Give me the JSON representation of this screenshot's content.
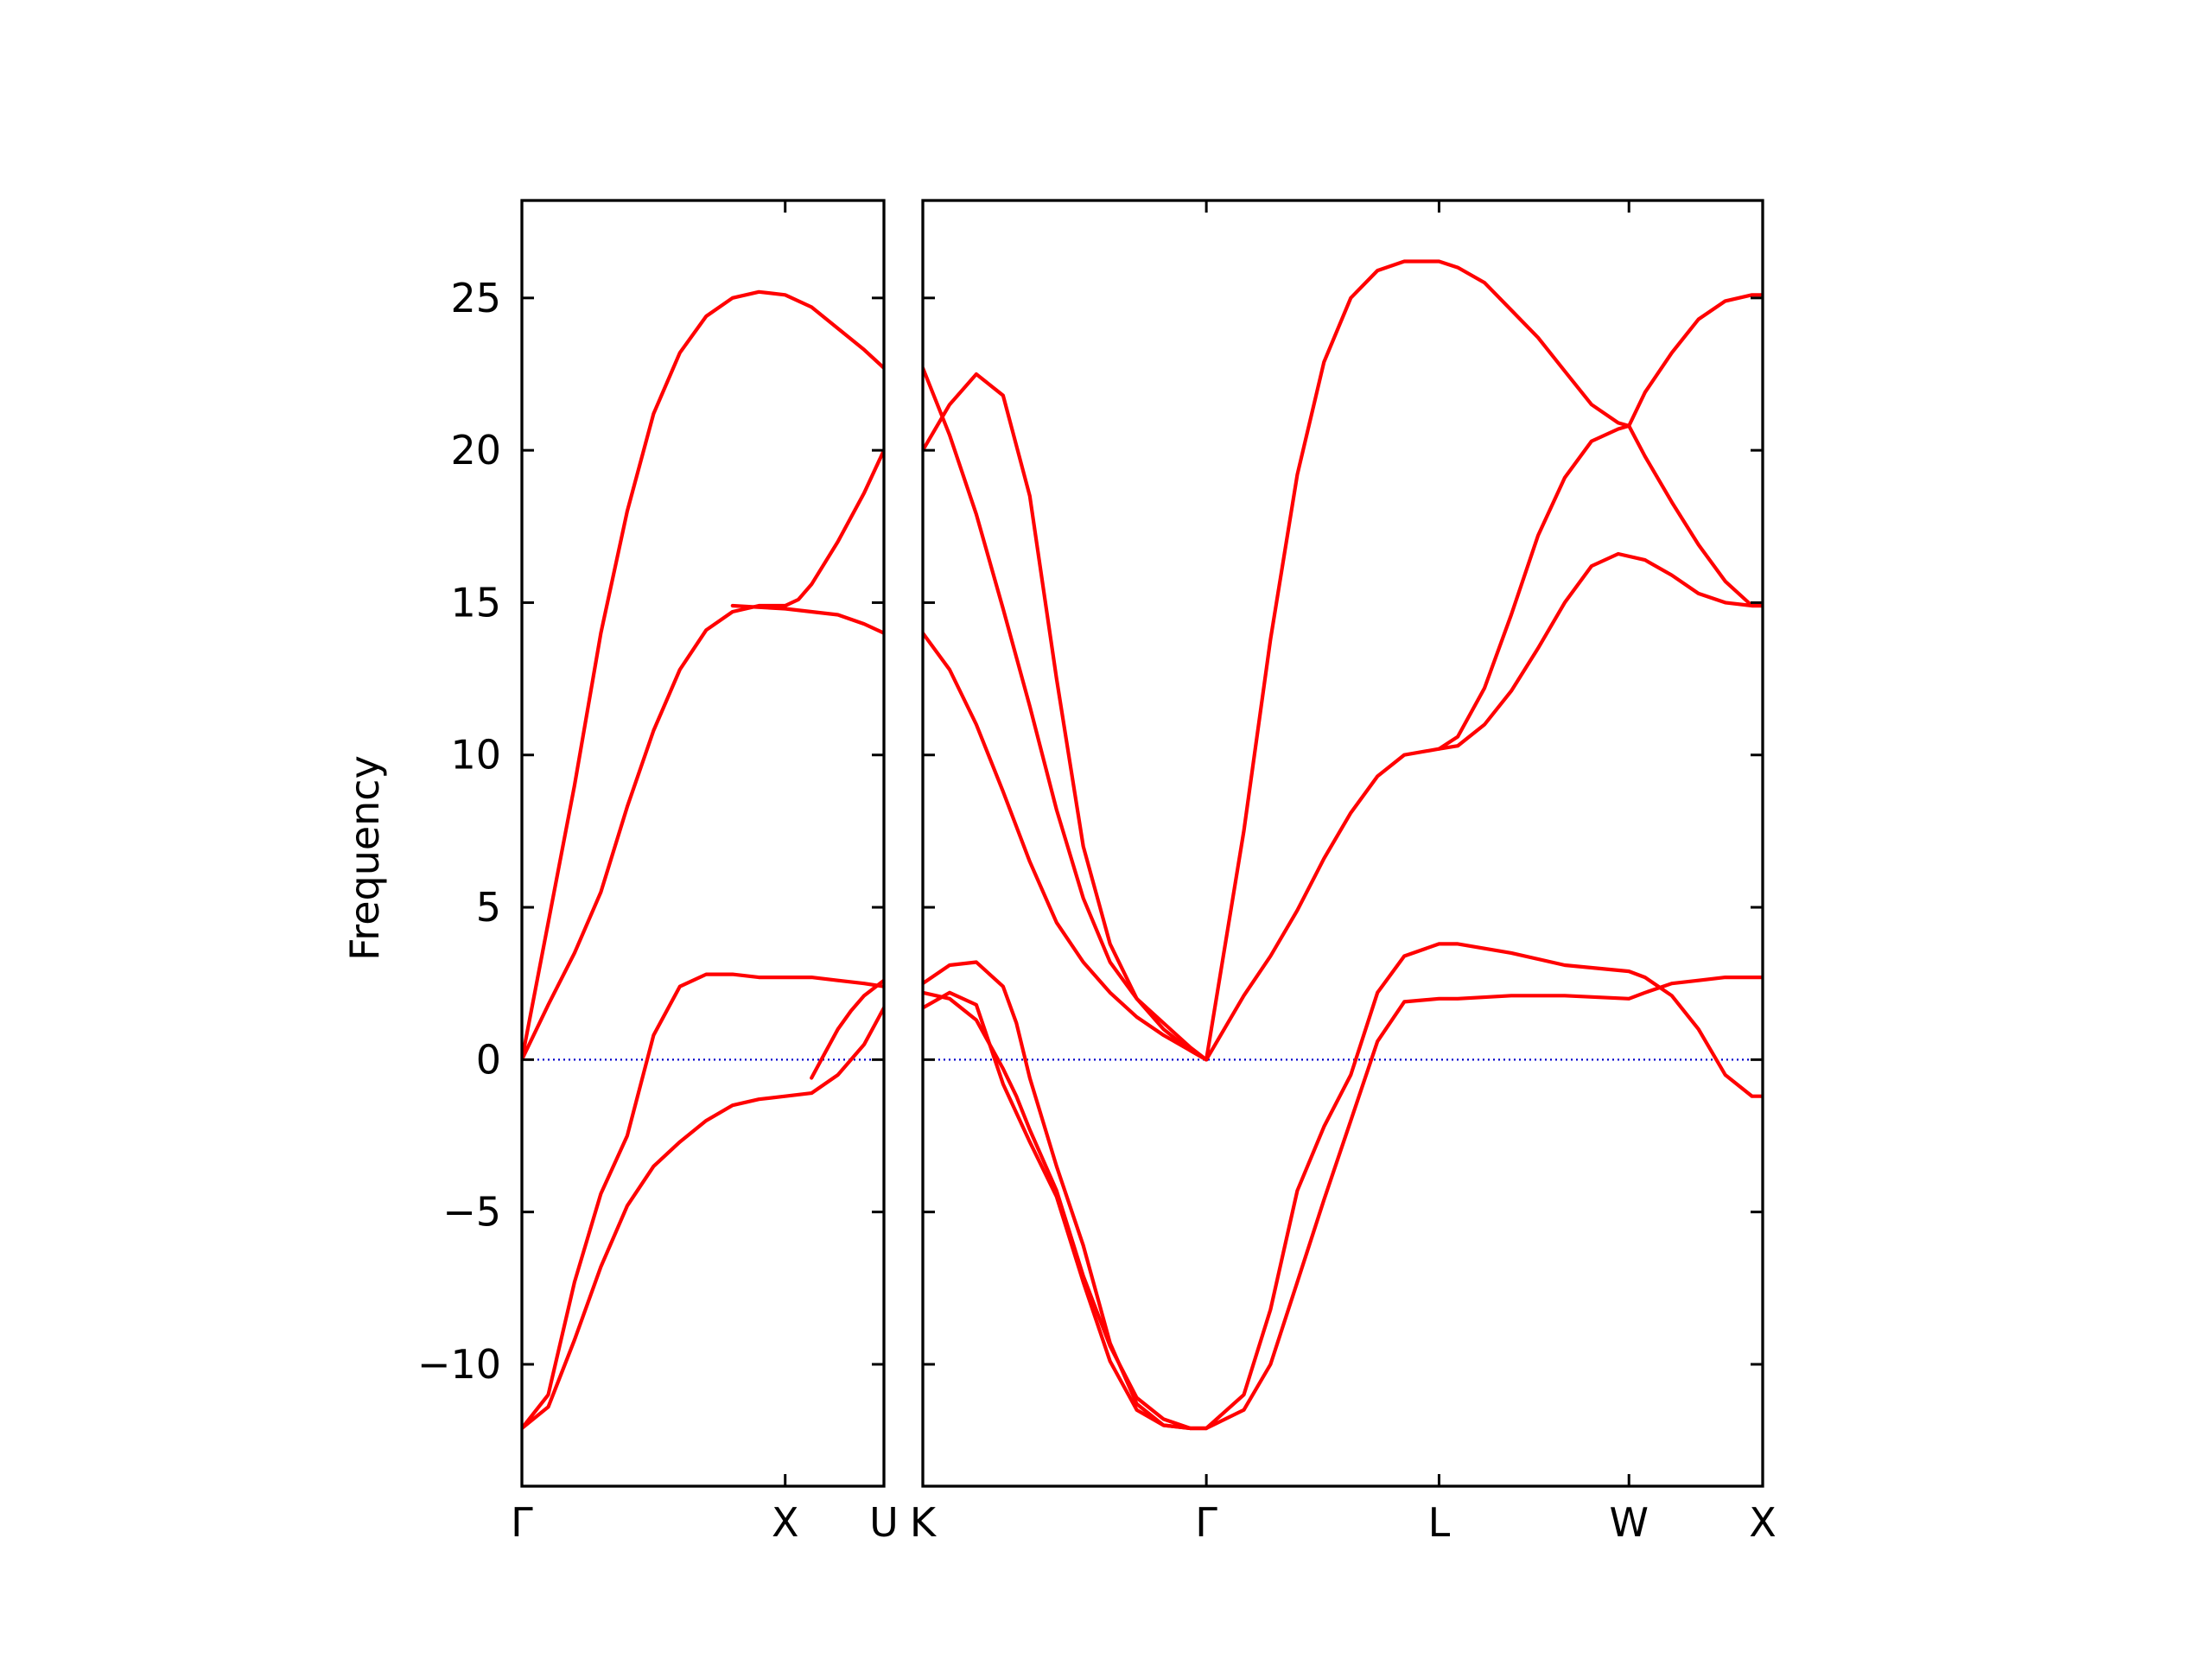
{
  "chart_data": {
    "type": "line",
    "ylabel": "Frequency",
    "ylim": [
      -14,
      28.2
    ],
    "yticks": [
      -10,
      -5,
      0,
      5,
      10,
      15,
      20,
      25
    ],
    "ytick_labels": [
      "−10",
      "−5",
      "0",
      "5",
      "10",
      "15",
      "20",
      "25"
    ],
    "line_color": "#ff0000",
    "zero_line_color": "#0000cc",
    "axes": [
      {
        "segment": "Γ–X–U",
        "xlim": [
          0,
          1.375
        ],
        "xticks": [
          0,
          1.0,
          1.375
        ],
        "xtick_labels": [
          "Γ",
          "X",
          "U"
        ],
        "bands": [
          {
            "x": [
              0,
              0.1,
              0.2,
              0.3,
              0.4,
              0.5,
              0.6,
              0.7,
              0.8,
              0.9,
              1.0,
              1.1,
              1.2,
              1.3,
              1.375
            ],
            "y": [
              0,
              4.5,
              9.0,
              14.0,
              18.0,
              21.2,
              23.2,
              24.4,
              25.0,
              25.2,
              25.1,
              24.7,
              24.0,
              23.3,
              22.7
            ]
          },
          {
            "x": [
              0,
              0.1,
              0.2,
              0.3,
              0.4,
              0.5,
              0.6,
              0.7,
              0.8,
              0.9,
              1.0,
              1.05,
              1.1,
              1.2,
              1.3,
              1.375
            ],
            "y": [
              0,
              1.8,
              3.5,
              5.5,
              8.3,
              10.8,
              12.8,
              14.1,
              14.7,
              14.9,
              14.9,
              15.1,
              15.6,
              17.0,
              18.6,
              20.0
            ]
          },
          {
            "x": [
              0,
              0.1,
              0.2,
              0.3,
              0.4,
              0.5,
              0.6,
              0.7,
              0.8,
              0.9,
              1.0,
              1.1,
              1.2,
              1.3,
              1.375
            ],
            "y": [
              -12.1,
              -11.4,
              -9.2,
              -6.8,
              -4.8,
              -3.5,
              -2.7,
              -2.0,
              -1.5,
              -1.3,
              -1.2,
              -1.1,
              -0.5,
              0.5,
              1.7
            ]
          },
          {
            "x": [
              0,
              0.1,
              0.2,
              0.3,
              0.4,
              0.5,
              0.6,
              0.7,
              0.8,
              0.9,
              1.0,
              1.1,
              1.2,
              1.3,
              1.375
            ],
            "y": [
              -12.1,
              -11.0,
              -7.3,
              -4.4,
              -2.5,
              0.8,
              2.4,
              2.8,
              2.8,
              2.7,
              2.7,
              2.7,
              2.6,
              2.5,
              2.4
            ]
          },
          {
            "x": [
              0.8,
              1.0,
              1.1,
              1.2,
              1.3,
              1.375
            ],
            "y": [
              14.9,
              14.8,
              14.7,
              14.6,
              14.3,
              14.0
            ]
          },
          {
            "x": [
              1.1,
              1.15,
              1.2,
              1.25,
              1.3,
              1.375
            ],
            "y": [
              -0.6,
              0.2,
              1.0,
              1.6,
              2.1,
              2.6
            ]
          }
        ]
      },
      {
        "segment": "K–Γ–L–W–X",
        "xlim": [
          0,
          3.14
        ],
        "xticks": [
          0,
          1.06,
          1.93,
          2.64,
          3.14
        ],
        "xtick_labels": [
          "K",
          "Γ",
          "L",
          "W",
          "X"
        ],
        "bands": [
          {
            "x": [
              0,
              0.1,
              0.2,
              0.3,
              0.4,
              0.5,
              0.6,
              0.7,
              0.8,
              0.9,
              1.0,
              1.06
            ],
            "y": [
              14.0,
              12.8,
              11.0,
              8.8,
              6.5,
              4.5,
              3.2,
              2.2,
              1.4,
              0.8,
              0.3,
              0
            ]
          },
          {
            "x": [
              0,
              0.1,
              0.2,
              0.3,
              0.4,
              0.5,
              0.6,
              0.7,
              0.8,
              0.9,
              1.0,
              1.06
            ],
            "y": [
              22.7,
              20.5,
              17.9,
              14.8,
              11.6,
              8.2,
              5.3,
              3.2,
              2.0,
              1.2,
              0.4,
              0
            ]
          },
          {
            "x": [
              0,
              0.1,
              0.2,
              0.3,
              0.4,
              0.5,
              0.6,
              0.7,
              0.8,
              0.9,
              1.0,
              1.06
            ],
            "y": [
              20.0,
              21.5,
              22.5,
              21.8,
              18.5,
              12.5,
              7.0,
              3.8,
              2.0,
              1.0,
              0.3,
              0
            ]
          },
          {
            "x": [
              1.06,
              1.2,
              1.3,
              1.4,
              1.5,
              1.6,
              1.7,
              1.8,
              1.93,
              2.0,
              2.1,
              2.2,
              2.3,
              2.4,
              2.5,
              2.6,
              2.64,
              2.7,
              2.8,
              2.9,
              3.0,
              3.1,
              3.14
            ],
            "y": [
              0,
              7.5,
              13.8,
              19.2,
              22.9,
              25.0,
              25.9,
              26.2,
              26.2,
              26.0,
              25.5,
              24.6,
              23.7,
              22.6,
              21.5,
              20.9,
              20.8,
              21.9,
              23.2,
              24.3,
              24.9,
              25.1,
              25.1
            ]
          },
          {
            "x": [
              1.06,
              1.2,
              1.3,
              1.4,
              1.5,
              1.6,
              1.7,
              1.8,
              1.93,
              2.0,
              2.1,
              2.2,
              2.3,
              2.4,
              2.5,
              2.6,
              2.64,
              2.7,
              2.8,
              2.9,
              3.0,
              3.1,
              3.14
            ],
            "y": [
              0,
              2.1,
              3.4,
              4.9,
              6.6,
              8.1,
              9.3,
              10.0,
              10.2,
              10.6,
              12.2,
              14.6,
              17.2,
              19.1,
              20.3,
              20.7,
              20.8,
              19.8,
              18.3,
              16.9,
              15.7,
              14.9,
              14.9
            ]
          },
          {
            "x": [
              1.93,
              2.0,
              2.1,
              2.2,
              2.3,
              2.4,
              2.5,
              2.6,
              2.7,
              2.8,
              2.9,
              3.0,
              3.1,
              3.14
            ],
            "y": [
              10.2,
              10.3,
              11.0,
              12.1,
              13.5,
              15.0,
              16.2,
              16.6,
              16.4,
              15.9,
              15.3,
              15.0,
              14.9,
              14.9
            ]
          },
          {
            "x": [
              0,
              0.1,
              0.2,
              0.3,
              0.35,
              0.4,
              0.5,
              0.6,
              0.7,
              0.8,
              0.9,
              1.0,
              1.06
            ],
            "y": [
              2.2,
              2.0,
              1.3,
              -0.3,
              -1.2,
              -2.3,
              -4.3,
              -7.1,
              -9.4,
              -11.1,
              -11.8,
              -12.1,
              -12.1
            ]
          },
          {
            "x": [
              0,
              0.1,
              0.2,
              0.3,
              0.35,
              0.4,
              0.5,
              0.6,
              0.7,
              0.8,
              0.9,
              1.0,
              1.06
            ],
            "y": [
              2.5,
              3.1,
              3.2,
              2.4,
              1.2,
              -0.6,
              -3.5,
              -6.1,
              -9.3,
              -11.3,
              -12.0,
              -12.1,
              -12.1
            ]
          },
          {
            "x": [
              0,
              0.1,
              0.2,
              0.3,
              0.4,
              0.5,
              0.6,
              0.7,
              0.8,
              0.9,
              1.0,
              1.06
            ],
            "y": [
              1.7,
              2.2,
              1.8,
              -0.8,
              -2.7,
              -4.5,
              -7.3,
              -9.9,
              -11.5,
              -12.0,
              -12.1,
              -12.1
            ]
          },
          {
            "x": [
              1.06,
              1.2,
              1.3,
              1.4,
              1.5,
              1.6,
              1.7,
              1.8,
              1.93,
              2.0,
              2.2,
              2.4,
              2.64,
              2.7,
              2.8,
              2.9,
              3.0,
              3.1,
              3.14
            ],
            "y": [
              -12.1,
              -11.0,
              -8.2,
              -4.3,
              -2.2,
              -0.5,
              2.2,
              3.4,
              3.8,
              3.8,
              3.5,
              3.1,
              2.9,
              2.7,
              2.1,
              1.0,
              -0.5,
              -1.2,
              -1.2
            ]
          },
          {
            "x": [
              1.06,
              1.2,
              1.3,
              1.4,
              1.5,
              1.6,
              1.7,
              1.8,
              1.93,
              2.0,
              2.2,
              2.4,
              2.64,
              2.7,
              2.8,
              2.9,
              3.0,
              3.1,
              3.14
            ],
            "y": [
              -12.1,
              -11.5,
              -10.0,
              -7.3,
              -4.6,
              -2.0,
              0.6,
              1.9,
              2.0,
              2.0,
              2.1,
              2.1,
              2.0,
              2.2,
              2.5,
              2.6,
              2.7,
              2.7,
              2.7
            ]
          }
        ]
      }
    ]
  }
}
